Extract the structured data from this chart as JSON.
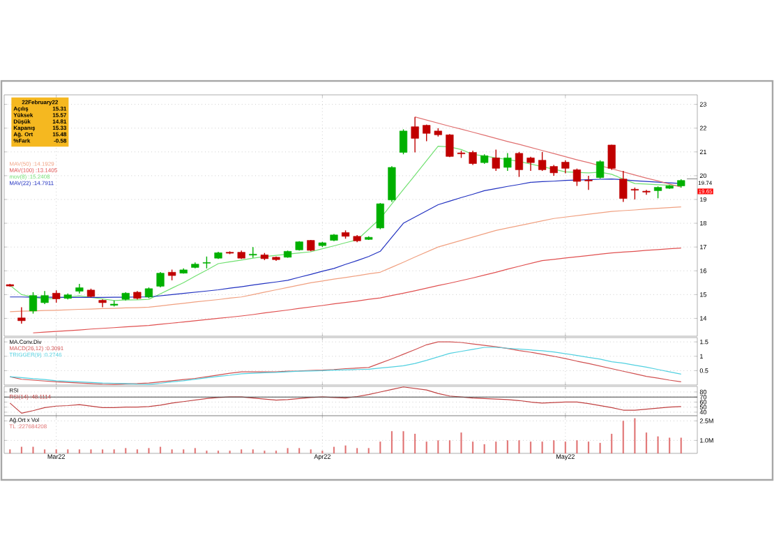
{
  "chart_data": [
    {
      "type": "candlestick",
      "categories": [
        null,
        null,
        null,
        null,
        null,
        null,
        null,
        null,
        null,
        null,
        null,
        null,
        null,
        null,
        null,
        null,
        null,
        null,
        null,
        null,
        null,
        null,
        null,
        null,
        null,
        null,
        null,
        null,
        null,
        null,
        null,
        null,
        null,
        null,
        null,
        null,
        null,
        null,
        null,
        null,
        null,
        null,
        null,
        null,
        null,
        null,
        null,
        null,
        null,
        null,
        null,
        null,
        null,
        null,
        null,
        null,
        null,
        null,
        null
      ],
      "ohlc": [
        [
          15.42,
          15.45,
          15.33,
          15.36
        ],
        [
          14.02,
          14.47,
          13.78,
          13.9
        ],
        [
          14.31,
          15.1,
          14.2,
          14.96
        ],
        [
          14.66,
          15.15,
          14.6,
          14.96
        ],
        [
          15.06,
          15.18,
          14.66,
          14.82
        ],
        [
          14.84,
          15.05,
          14.8,
          14.99
        ],
        [
          15.14,
          15.45,
          15.05,
          15.29
        ],
        [
          15.19,
          15.25,
          14.88,
          14.92
        ],
        [
          14.76,
          14.8,
          14.47,
          14.66
        ],
        [
          14.55,
          14.75,
          14.5,
          14.6
        ],
        [
          14.8,
          15.1,
          14.75,
          15.06
        ],
        [
          15.1,
          15.15,
          14.8,
          14.84
        ],
        [
          14.9,
          15.3,
          14.85,
          15.25
        ],
        [
          15.35,
          15.95,
          15.3,
          15.9
        ],
        [
          15.94,
          16.05,
          15.6,
          15.8
        ],
        [
          15.9,
          16.1,
          15.88,
          16.04
        ],
        [
          16.14,
          16.35,
          16.1,
          16.28
        ],
        [
          16.32,
          16.6,
          16.1,
          16.35
        ],
        [
          16.53,
          16.8,
          16.5,
          16.76
        ],
        [
          16.78,
          16.82,
          16.7,
          16.74
        ],
        [
          16.78,
          16.85,
          16.5,
          16.53
        ],
        [
          16.66,
          17.0,
          16.55,
          16.7
        ],
        [
          16.67,
          16.75,
          16.45,
          16.51
        ],
        [
          16.57,
          16.6,
          16.42,
          16.47
        ],
        [
          16.57,
          16.85,
          16.55,
          16.82
        ],
        [
          16.88,
          17.25,
          16.85,
          17.22
        ],
        [
          17.28,
          17.3,
          16.82,
          16.86
        ],
        [
          17.06,
          17.22,
          17.0,
          17.18
        ],
        [
          17.28,
          17.55,
          17.25,
          17.51
        ],
        [
          17.61,
          17.7,
          17.35,
          17.45
        ],
        [
          17.45,
          17.5,
          17.2,
          17.26
        ],
        [
          17.32,
          17.45,
          17.3,
          17.41
        ],
        [
          17.8,
          18.85,
          17.75,
          18.82
        ],
        [
          18.98,
          20.4,
          18.9,
          20.35
        ],
        [
          20.98,
          21.95,
          20.9,
          21.88
        ],
        [
          22.06,
          22.47,
          20.98,
          21.57
        ],
        [
          22.12,
          22.15,
          21.45,
          21.78
        ],
        [
          21.88,
          22.0,
          21.65,
          21.72
        ],
        [
          21.72,
          21.75,
          20.78,
          20.81
        ],
        [
          20.96,
          21.05,
          20.75,
          20.92
        ],
        [
          20.98,
          21.05,
          20.45,
          20.51
        ],
        [
          20.55,
          20.9,
          20.5,
          20.84
        ],
        [
          20.75,
          21.1,
          20.2,
          20.31
        ],
        [
          20.35,
          20.95,
          20.2,
          20.75
        ],
        [
          20.94,
          21.0,
          19.95,
          20.25
        ],
        [
          20.75,
          20.8,
          20.2,
          20.55
        ],
        [
          20.65,
          21.0,
          20.2,
          20.25
        ],
        [
          20.39,
          20.45,
          20.0,
          20.12
        ],
        [
          20.57,
          20.65,
          20.1,
          20.31
        ],
        [
          20.25,
          20.3,
          19.57,
          19.76
        ],
        [
          19.82,
          20.0,
          19.4,
          19.78
        ],
        [
          19.92,
          20.65,
          19.88,
          20.59
        ],
        [
          21.29,
          21.3,
          20.25,
          20.31
        ],
        [
          19.86,
          20.2,
          18.9,
          19.04
        ],
        [
          19.43,
          19.5,
          19.0,
          19.39
        ],
        [
          19.35,
          19.4,
          19.2,
          19.31
        ],
        [
          19.37,
          19.55,
          19.05,
          19.51
        ],
        [
          19.47,
          19.6,
          19.45,
          19.57
        ],
        [
          19.57,
          19.85,
          19.5,
          19.8
        ]
      ],
      "series": [
        {
          "name": "MAV(50) :14.1929",
          "type": "line",
          "color": "#f0a080",
          "values": [
            14.28,
            14.3,
            14.31,
            14.33,
            14.34,
            14.36,
            14.38,
            14.39,
            14.41,
            14.42,
            14.44,
            14.45,
            14.47,
            14.52,
            14.58,
            14.63,
            14.69,
            14.74,
            14.79,
            14.85,
            14.9,
            15.0,
            15.1,
            15.2,
            15.3,
            15.4,
            15.5,
            15.57,
            15.65,
            15.72,
            15.79,
            15.87,
            15.94,
            16.15,
            16.36,
            16.58,
            16.79,
            17.0,
            17.14,
            17.28,
            17.42,
            17.56,
            17.7,
            17.8,
            17.9,
            18.0,
            18.1,
            18.2,
            18.26,
            18.32,
            18.38,
            18.44,
            18.5,
            18.53,
            18.56,
            18.6,
            18.63,
            18.66,
            18.69
          ]
        },
        {
          "name": "MAV(100) :13.1405",
          "type": "line",
          "color": "#e05050",
          "values": [
            null,
            null,
            13.39,
            13.42,
            13.45,
            13.48,
            13.51,
            13.55,
            13.58,
            13.61,
            13.64,
            13.67,
            13.7,
            13.75,
            13.8,
            13.85,
            13.9,
            13.95,
            14.0,
            14.05,
            14.1,
            14.16,
            14.23,
            14.29,
            14.35,
            14.42,
            14.48,
            14.54,
            14.61,
            14.67,
            14.73,
            14.8,
            14.86,
            14.96,
            15.06,
            15.16,
            15.27,
            15.38,
            15.48,
            15.59,
            15.7,
            15.82,
            15.94,
            16.07,
            16.19,
            16.31,
            16.43,
            16.48,
            16.54,
            16.59,
            16.64,
            16.7,
            16.75,
            16.79,
            16.82,
            16.86,
            16.89,
            16.93,
            16.96
          ]
        },
        {
          "name": "mov(8) :15.2408",
          "type": "line",
          "color": "#70e070",
          "values": [
            15.39,
            15.0,
            14.9,
            14.8,
            14.85,
            14.9,
            14.95,
            14.88,
            14.82,
            14.75,
            14.77,
            14.78,
            14.8,
            15.03,
            15.27,
            15.5,
            15.77,
            16.03,
            16.3,
            16.38,
            16.45,
            16.53,
            16.6,
            16.65,
            16.7,
            16.75,
            16.8,
            16.93,
            17.05,
            17.18,
            17.3,
            17.75,
            18.2,
            18.81,
            19.42,
            20.02,
            20.63,
            21.24,
            21.21,
            21.1,
            20.9,
            20.83,
            20.75,
            20.68,
            20.6,
            20.49,
            20.38,
            20.27,
            20.16,
            20.14,
            20.12,
            20.15,
            20.06,
            19.86,
            19.67,
            19.65,
            19.62,
            19.6,
            19.57
          ]
        },
        {
          "name": "MAV(22) :14.7911",
          "type": "line",
          "color": "#2030c0",
          "values": [
            14.9,
            14.9,
            14.89,
            14.89,
            14.89,
            14.88,
            14.88,
            14.88,
            14.88,
            14.89,
            14.89,
            14.9,
            14.9,
            14.95,
            15.0,
            15.05,
            15.1,
            15.15,
            15.2,
            15.27,
            15.33,
            15.4,
            15.47,
            15.53,
            15.6,
            15.73,
            15.85,
            15.98,
            16.1,
            16.27,
            16.43,
            16.6,
            16.82,
            17.41,
            18.0,
            18.26,
            18.52,
            18.78,
            18.93,
            19.08,
            19.22,
            19.37,
            19.46,
            19.55,
            19.63,
            19.72,
            19.75,
            19.77,
            19.8,
            19.82,
            19.83,
            19.85,
            19.86,
            19.83,
            19.79,
            19.76,
            19.73,
            19.7,
            19.67
          ]
        },
        {
          "type": "line",
          "color": "#e07070",
          "values": [
            null,
            null,
            null,
            null,
            null,
            null,
            null,
            null,
            null,
            null,
            null,
            null,
            null,
            null,
            null,
            null,
            null,
            null,
            null,
            null,
            null,
            null,
            null,
            null,
            null,
            null,
            null,
            null,
            null,
            null,
            null,
            null,
            null,
            null,
            null,
            22.47,
            22.34,
            22.21,
            22.08,
            21.96,
            21.83,
            21.7,
            21.57,
            21.44,
            21.32,
            21.19,
            21.06,
            20.93,
            20.8,
            20.67,
            20.55,
            20.42,
            20.29,
            20.16,
            20.03,
            19.9,
            19.78,
            19.65,
            19.52
          ]
        }
      ],
      "ylim": [
        13.25,
        23.4
      ],
      "yticks": [
        14,
        15,
        16,
        17,
        18,
        19,
        20,
        21,
        22,
        23
      ],
      "grid": true,
      "legend": "top left",
      "tick_labels": "y",
      "annotations": [
        "22February22",
        "Açılış",
        "15.31",
        "Yüksek",
        "15.57",
        "Düşük",
        "14.81",
        "Kapanış",
        "15.33",
        "Ağ. Ort",
        "15.48",
        "%Fark",
        "-0.58",
        "19.74",
        "19.65"
      ]
    },
    {
      "type": "line",
      "title": "MA.Conv.Div",
      "categories": [
        null,
        null,
        null,
        null,
        null,
        null,
        null,
        null,
        null,
        null,
        null,
        null,
        null,
        null,
        null,
        null,
        null,
        null,
        null,
        null,
        null,
        null,
        null,
        null,
        null,
        null,
        null,
        null,
        null,
        null,
        null,
        null,
        null,
        null,
        null,
        null,
        null,
        null,
        null,
        null,
        null,
        null,
        null,
        null,
        null,
        null,
        null,
        null,
        null,
        null,
        null,
        null,
        null,
        null,
        null,
        null,
        null,
        null,
        null
      ],
      "series": [
        {
          "name": "MACD(26,12) :0.3091",
          "color": "#d05050",
          "values": [
            0.29,
            0.2,
            0.17,
            0.14,
            0.11,
            0.09,
            0.07,
            0.05,
            0.03,
            0.02,
            0.04,
            0.05,
            0.07,
            0.11,
            0.15,
            0.19,
            0.23,
            0.29,
            0.35,
            0.41,
            0.46,
            0.46,
            0.46,
            0.46,
            0.48,
            0.49,
            0.51,
            0.52,
            0.54,
            0.57,
            0.59,
            0.61,
            0.76,
            0.91,
            1.07,
            1.23,
            1.4,
            1.5,
            1.5,
            1.48,
            1.43,
            1.38,
            1.33,
            1.27,
            1.2,
            1.14,
            1.07,
            1.0,
            0.92,
            0.83,
            0.75,
            0.66,
            0.57,
            0.48,
            0.39,
            0.3,
            0.24,
            0.17,
            0.11
          ]
        },
        {
          "name": "TRIGGER(9) :0.2746",
          "color": "#50d0e0",
          "values": [
            0.29,
            0.26,
            0.22,
            0.19,
            0.15,
            0.13,
            0.11,
            0.09,
            0.07,
            0.06,
            0.05,
            0.03,
            0.02,
            0.06,
            0.11,
            0.15,
            0.2,
            0.25,
            0.3,
            0.34,
            0.39,
            0.41,
            0.43,
            0.44,
            0.46,
            0.48,
            0.49,
            0.5,
            0.52,
            0.53,
            0.54,
            0.55,
            0.59,
            0.63,
            0.67,
            0.75,
            0.86,
            0.98,
            1.1,
            1.17,
            1.24,
            1.31,
            1.31,
            1.28,
            1.25,
            1.22,
            1.19,
            1.15,
            1.09,
            1.03,
            0.96,
            0.9,
            0.81,
            0.76,
            0.69,
            0.62,
            0.54,
            0.46,
            0.38
          ]
        }
      ],
      "ylim": [
        0,
        1.65
      ],
      "yticks": [
        0.5,
        1,
        1.5
      ],
      "grid": true,
      "legend": "top left",
      "tick_labels": "y"
    },
    {
      "type": "line",
      "title": "RSI",
      "categories": [
        null,
        null,
        null,
        null,
        null,
        null,
        null,
        null,
        null,
        null,
        null,
        null,
        null,
        null,
        null,
        null,
        null,
        null,
        null,
        null,
        null,
        null,
        null,
        null,
        null,
        null,
        null,
        null,
        null,
        null,
        null,
        null,
        null,
        null,
        null,
        null,
        null,
        null,
        null,
        null,
        null,
        null,
        null,
        null,
        null,
        null,
        null,
        null,
        null,
        null,
        null,
        null,
        null,
        null,
        null,
        null,
        null,
        null,
        null
      ],
      "series": [
        {
          "name": "RSI(14) :48.1114",
          "color": "#c04040",
          "values": [
            58,
            38,
            43,
            49,
            52,
            53,
            55,
            52,
            49,
            49,
            50,
            50,
            51,
            54,
            58,
            61,
            64,
            67,
            69,
            70,
            70,
            68,
            66,
            64,
            65,
            67,
            69,
            70,
            69,
            68,
            71,
            75,
            80,
            85,
            90,
            87,
            84,
            77,
            72,
            70,
            68,
            67,
            66,
            65,
            63,
            60,
            58,
            59,
            60,
            60,
            57,
            53,
            49,
            44,
            44,
            46,
            48,
            50,
            51
          ]
        }
      ],
      "ref_lines": [
        {
          "axis": "y",
          "value": 70,
          "color": "#404040"
        }
      ],
      "ylim": [
        33,
        91
      ],
      "yticks": [
        40,
        50,
        60,
        70,
        80
      ],
      "grid": true,
      "legend": "top left",
      "tick_labels": "y"
    },
    {
      "type": "bar",
      "title": "Ağ.Ort x Vol",
      "categories": [
        null,
        null,
        null,
        null,
        "Mar22",
        null,
        null,
        null,
        null,
        null,
        null,
        null,
        null,
        null,
        null,
        null,
        null,
        null,
        null,
        null,
        null,
        null,
        null,
        null,
        null,
        null,
        null,
        "Apr22",
        null,
        null,
        null,
        null,
        null,
        null,
        null,
        null,
        null,
        null,
        null,
        null,
        null,
        null,
        null,
        null,
        null,
        null,
        null,
        null,
        "May22",
        null,
        null,
        null,
        null,
        null,
        null,
        null,
        null,
        null,
        null
      ],
      "series": [
        {
          "name": "TL :227684208",
          "color": "#e07070",
          "values": [
            0.3,
            0.5,
            0.5,
            0.3,
            0.3,
            0.3,
            0.3,
            0.3,
            0.3,
            0.3,
            0.4,
            0.3,
            0.4,
            0.5,
            0.3,
            0.3,
            0.4,
            0.2,
            0.2,
            0.2,
            0.3,
            0.3,
            0.2,
            0.2,
            0.4,
            0.4,
            0.3,
            0.2,
            0.5,
            0.6,
            0.4,
            0.4,
            0.9,
            1.7,
            1.7,
            1.5,
            0.9,
            1.0,
            1.0,
            1.6,
            0.9,
            0.7,
            0.9,
            1.0,
            1.0,
            0.9,
            0.9,
            1.0,
            0.9,
            1.0,
            0.9,
            0.8,
            1.5,
            2.5,
            2.7,
            1.6,
            1.3,
            1.2,
            1.2
          ]
        }
      ],
      "ylim": [
        0,
        2.9
      ],
      "yticks": [
        {
          "value": 1.0,
          "label": "1.0M"
        },
        {
          "value": 2.5,
          "label": "2.5M"
        }
      ],
      "grid": true,
      "legend": "top left"
    }
  ]
}
